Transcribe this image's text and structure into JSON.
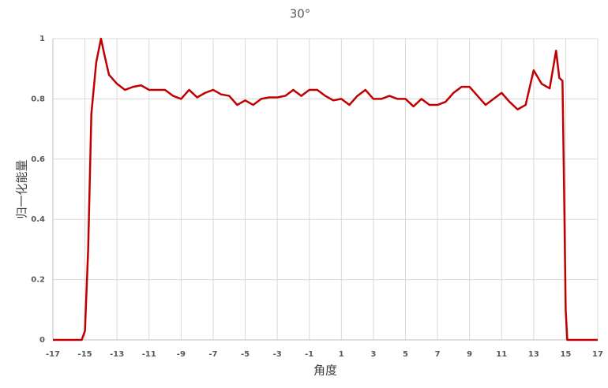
{
  "chart_data": {
    "type": "line",
    "title": "30°",
    "xlabel": "角度",
    "ylabel": "归一化能量",
    "x": [
      -17,
      -15.2,
      -15.0,
      -14.8,
      -14.6,
      -14.3,
      -14.0,
      -13.8,
      -13.5,
      -13.0,
      -12.5,
      -12,
      -11.5,
      -11,
      -10.5,
      -10,
      -9.5,
      -9,
      -8.5,
      -8,
      -7.5,
      -7,
      -6.5,
      -6,
      -5.5,
      -5,
      -4.5,
      -4,
      -3.5,
      -3,
      -2.5,
      -2,
      -1.5,
      -1,
      -0.5,
      0,
      0.5,
      1,
      1.5,
      2,
      2.5,
      3,
      3.5,
      4,
      4.5,
      5,
      5.5,
      6,
      6.5,
      7,
      7.5,
      8,
      8.5,
      9,
      9.5,
      10,
      10.5,
      11,
      11.5,
      12,
      12.5,
      13,
      13.5,
      14,
      14.4,
      14.6,
      14.8,
      14.9,
      15.0,
      15.1,
      17
    ],
    "series": [
      {
        "name": "30°",
        "color": "#c00000",
        "values": [
          0,
          0,
          0.03,
          0.3,
          0.75,
          0.92,
          1.0,
          0.95,
          0.88,
          0.85,
          0.83,
          0.84,
          0.845,
          0.83,
          0.83,
          0.83,
          0.81,
          0.8,
          0.83,
          0.805,
          0.82,
          0.83,
          0.815,
          0.81,
          0.78,
          0.795,
          0.78,
          0.8,
          0.805,
          0.805,
          0.81,
          0.83,
          0.81,
          0.83,
          0.83,
          0.81,
          0.795,
          0.8,
          0.78,
          0.81,
          0.83,
          0.8,
          0.8,
          0.81,
          0.8,
          0.8,
          0.775,
          0.8,
          0.78,
          0.78,
          0.79,
          0.82,
          0.84,
          0.84,
          0.81,
          0.78,
          0.8,
          0.82,
          0.79,
          0.765,
          0.78,
          0.895,
          0.85,
          0.835,
          0.96,
          0.87,
          0.86,
          0.5,
          0.1,
          0,
          0
        ]
      }
    ],
    "xlim": [
      -17,
      17
    ],
    "xticks": [
      -17,
      -15,
      -13,
      -11,
      -9,
      -7,
      -5,
      -3,
      -1,
      1,
      3,
      5,
      7,
      9,
      11,
      13,
      15,
      17
    ],
    "ylim": [
      0,
      1
    ],
    "yticks": [
      0,
      0.2,
      0.4,
      0.6,
      0.8,
      1
    ],
    "grid": true
  }
}
